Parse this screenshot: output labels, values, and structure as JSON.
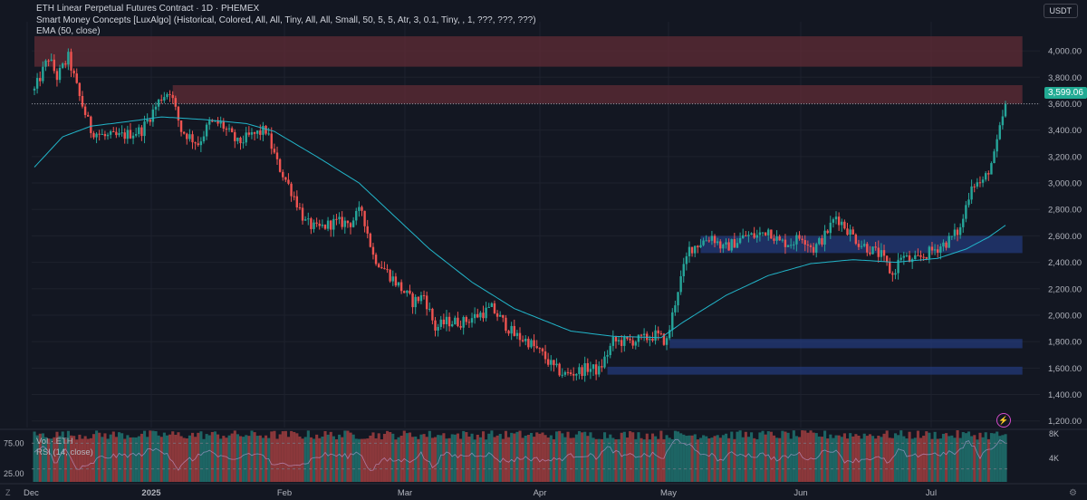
{
  "header": {
    "symbol_line": "ETH Linear Perpetual Futures Contract · 1D · PHEMEX",
    "indicator_line": "Smart Money Concepts [LuxAlgo] (Historical, Colored, All, All, Tiny, All, All, Small, 50, 5, 5, Atr, 3, 0.1, Tiny, , 1, ???, ???, ???)",
    "ema_line": "EMA (50, close)",
    "currency": "USDT",
    "last_price": "3,599.06"
  },
  "colors": {
    "up": "#26a69a",
    "down": "#ef5350",
    "ema": "#22b5c9",
    "supply_zone": "#5b2a35",
    "demand_zone": "#233a7a",
    "background": "#131722"
  },
  "sub_panel": {
    "vol_label": "Vol · ETH",
    "rsi_label": "RSI (14, close)",
    "rsi_ticks": [
      "75.00",
      "25.00"
    ],
    "vol_ticks": [
      "8K",
      "4K"
    ]
  },
  "x_labels": [
    "Dec",
    "2025",
    "Feb",
    "Mar",
    "Apr",
    "May",
    "Jun",
    "Jul"
  ],
  "chart_data": {
    "type": "candlestick",
    "title": "ETH Linear Perpetual Futures Contract · 1D · PHEMEX",
    "ylim": [
      1150,
      4220
    ],
    "y_ticks": [
      "4,000.00",
      "3,800.00",
      "3,600.00",
      "3,400.00",
      "3,200.00",
      "3,000.00",
      "2,800.00",
      "2,600.00",
      "2,400.00",
      "2,200.00",
      "2,000.00",
      "1,800.00",
      "1,600.00",
      "1,400.00",
      "1,200.00"
    ],
    "last_price": 3599.06,
    "close_path": [
      [
        0,
        3700
      ],
      [
        5,
        3950
      ],
      [
        8,
        3800
      ],
      [
        12,
        3950
      ],
      [
        16,
        3650
      ],
      [
        20,
        3400
      ],
      [
        25,
        3350
      ],
      [
        30,
        3350
      ],
      [
        38,
        3400
      ],
      [
        45,
        3650
      ],
      [
        48,
        3700
      ],
      [
        52,
        3400
      ],
      [
        58,
        3300
      ],
      [
        62,
        3450
      ],
      [
        66,
        3450
      ],
      [
        72,
        3300
      ],
      [
        76,
        3350
      ],
      [
        82,
        3400
      ],
      [
        86,
        3150
      ],
      [
        92,
        2900
      ],
      [
        96,
        2700
      ],
      [
        100,
        2650
      ],
      [
        106,
        2700
      ],
      [
        112,
        2700
      ],
      [
        116,
        2800
      ],
      [
        120,
        2450
      ],
      [
        126,
        2300
      ],
      [
        130,
        2200
      ],
      [
        134,
        2100
      ],
      [
        138,
        2150
      ],
      [
        142,
        1900
      ],
      [
        146,
        1950
      ],
      [
        152,
        1950
      ],
      [
        157,
        2000
      ],
      [
        162,
        2050
      ],
      [
        166,
        1950
      ],
      [
        170,
        1850
      ],
      [
        175,
        1800
      ],
      [
        180,
        1700
      ],
      [
        184,
        1600
      ],
      [
        188,
        1550
      ],
      [
        192,
        1570
      ],
      [
        196,
        1600
      ],
      [
        200,
        1580
      ],
      [
        205,
        1800
      ],
      [
        210,
        1800
      ],
      [
        216,
        1820
      ],
      [
        220,
        1850
      ],
      [
        224,
        1800
      ],
      [
        228,
        2200
      ],
      [
        232,
        2500
      ],
      [
        236,
        2550
      ],
      [
        240,
        2600
      ],
      [
        244,
        2500
      ],
      [
        248,
        2550
      ],
      [
        252,
        2600
      ],
      [
        256,
        2600
      ],
      [
        260,
        2650
      ],
      [
        264,
        2550
      ],
      [
        268,
        2550
      ],
      [
        272,
        2600
      ],
      [
        276,
        2500
      ],
      [
        280,
        2600
      ],
      [
        284,
        2750
      ],
      [
        288,
        2650
      ],
      [
        292,
        2550
      ],
      [
        296,
        2500
      ],
      [
        300,
        2450
      ],
      [
        304,
        2300
      ],
      [
        307,
        2450
      ],
      [
        311,
        2400
      ],
      [
        315,
        2450
      ],
      [
        319,
        2500
      ],
      [
        323,
        2550
      ],
      [
        328,
        2650
      ],
      [
        332,
        3000
      ],
      [
        336,
        3000
      ],
      [
        340,
        3200
      ],
      [
        344,
        3600
      ]
    ],
    "ema_path": [
      [
        0,
        3120
      ],
      [
        10,
        3350
      ],
      [
        20,
        3430
      ],
      [
        35,
        3470
      ],
      [
        45,
        3500
      ],
      [
        60,
        3480
      ],
      [
        75,
        3450
      ],
      [
        85,
        3390
      ],
      [
        100,
        3200
      ],
      [
        115,
        3000
      ],
      [
        125,
        2800
      ],
      [
        140,
        2500
      ],
      [
        155,
        2250
      ],
      [
        170,
        2050
      ],
      [
        190,
        1880
      ],
      [
        205,
        1840
      ],
      [
        222,
        1830
      ],
      [
        230,
        1950
      ],
      [
        245,
        2150
      ],
      [
        260,
        2300
      ],
      [
        275,
        2390
      ],
      [
        290,
        2420
      ],
      [
        305,
        2400
      ],
      [
        320,
        2430
      ],
      [
        330,
        2500
      ],
      [
        338,
        2590
      ],
      [
        344,
        2680
      ]
    ],
    "zones": [
      {
        "kind": "supply",
        "from": 0,
        "to": 350,
        "low": 3880,
        "high": 4110
      },
      {
        "kind": "supply",
        "from": 49,
        "to": 350,
        "low": 3600,
        "high": 3740
      },
      {
        "kind": "demand",
        "from": 236,
        "to": 350,
        "low": 2470,
        "high": 2600
      },
      {
        "kind": "demand",
        "from": 225,
        "to": 350,
        "low": 1750,
        "high": 1820
      },
      {
        "kind": "demand",
        "from": 203,
        "to": 350,
        "low": 1550,
        "high": 1610
      }
    ],
    "n_candles": 345
  }
}
